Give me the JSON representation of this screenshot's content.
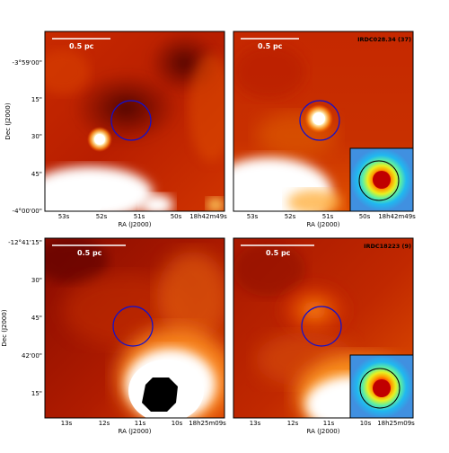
{
  "chart_data": [
    {
      "type": "heatmap",
      "panel": "top-left",
      "colormap": "hot (white = bright, dark red/black = faint)",
      "scalebar_label": "0.5 pc",
      "ylabel": "Dec (J2000)",
      "xlabel": "RA (J2000)",
      "y_ticks": [
        "-3°59'00\"",
        "15\"",
        "30\"",
        "45\"",
        "-4°00'00\""
      ],
      "x_ticks": [
        "53s",
        "52s",
        "51s",
        "50s",
        "18h42m49s"
      ],
      "aperture": "blue circle near center",
      "features": [
        "bright compact source left of aperture",
        "bright extended emission along bottom edge"
      ]
    },
    {
      "type": "heatmap",
      "panel": "top-right",
      "colormap": "hot",
      "scalebar_label": "0.5 pc",
      "source_label": "IRDC028.34 (37)",
      "xlabel": "RA (J2000)",
      "x_ticks": [
        "53s",
        "52s",
        "51s",
        "50s",
        "18h42m49s"
      ],
      "aperture": "blue circle around bright compact source",
      "inset": "jet-colormap zoom of compact source with black circle aperture"
    },
    {
      "type": "heatmap",
      "panel": "bottom-left",
      "colormap": "hot",
      "scalebar_label": "0.5 pc",
      "ylabel": "Dec (J2000)",
      "xlabel": "RA (J2000)",
      "y_ticks": [
        "-12°41'15\"",
        "30\"",
        "45\"",
        "42'00\"",
        "15\""
      ],
      "x_ticks": [
        "13s",
        "12s",
        "11s",
        "10s",
        "18h25m09s"
      ],
      "aperture": "blue circle in faint region",
      "features": [
        "saturated bright source at bottom right with black (masked) core"
      ]
    },
    {
      "type": "heatmap",
      "panel": "bottom-right",
      "colormap": "hot",
      "scalebar_label": "0.5 pc",
      "source_label": "IRDC18223 (9)",
      "xlabel": "RA (J2000)",
      "x_ticks": [
        "13s",
        "12s",
        "11s",
        "10s",
        "18h25m09s"
      ],
      "aperture": "blue circle around diffuse orange emission",
      "inset": "jet-colormap zoom with black circle aperture"
    }
  ],
  "colors": {
    "aperture": "#1010d0",
    "inset_circle": "#000000",
    "scalebar": "#ffffff",
    "label_text": "#000000"
  }
}
